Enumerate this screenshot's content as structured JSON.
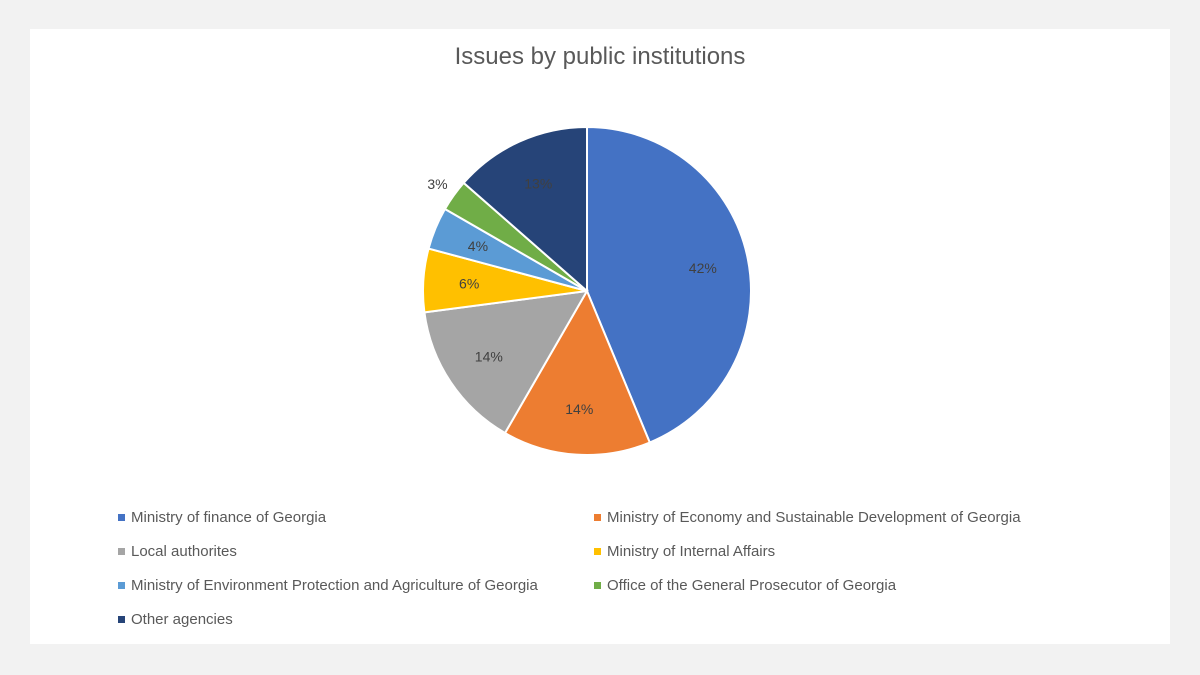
{
  "chart_data": {
    "type": "pie",
    "title": "Issues by public institutions",
    "categories": [
      "Ministry of finance of Georgia",
      "Ministry of Economy and Sustainable Development of Georgia",
      "Local authorites",
      "Ministry of Internal Affairs",
      "Ministry of Environment Protection and Agriculture of Georgia",
      "Office of the General Prosecutor of Georgia",
      "Other agencies"
    ],
    "values": [
      42,
      14,
      14,
      6,
      4,
      3,
      13
    ],
    "labels": [
      "42%",
      "14%",
      "14%",
      "6%",
      "4%",
      "3%",
      "13%"
    ],
    "colors": [
      "#4472c4",
      "#ed7d31",
      "#a5a5a5",
      "#ffc000",
      "#5b9bd5",
      "#70ad47",
      "#264478"
    ],
    "legend_position": "bottom"
  }
}
